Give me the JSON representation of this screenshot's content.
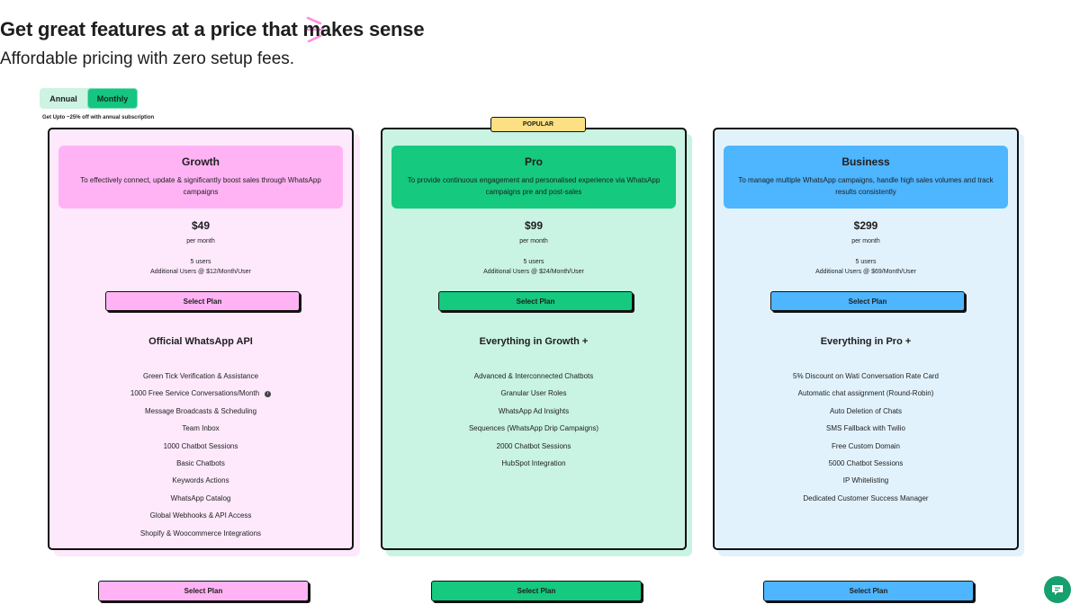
{
  "header": {
    "title": "Get great features at a price that makes sense",
    "subtitle": "Affordable pricing with zero setup fees."
  },
  "billing_toggle": {
    "options": [
      "Annual",
      "Monthly"
    ],
    "selected": "Monthly",
    "note": "Get Upto ~25% off with annual subscription"
  },
  "popular_badge": "POPULAR",
  "plans": [
    {
      "name": "Growth",
      "description": "To effectively connect, update & significantly boost sales through WhatsApp campaigns",
      "price": "$49",
      "period": "per month",
      "users": "5 users",
      "additional_users": "Additional Users @ $12/Month/User",
      "button_label": "Select Plan",
      "features_title": "Official WhatsApp API",
      "features": [
        "Green Tick Verification & Assistance",
        "1000 Free Service Conversations/Month",
        "Message Broadcasts & Scheduling",
        "Team Inbox",
        "1000 Chatbot Sessions",
        "Basic Chatbots",
        "Keywords Actions",
        "WhatsApp Catalog",
        "Global Webhooks & API Access",
        "Shopify & Woocommerce Integrations"
      ],
      "accent": "#ffb3f4",
      "background": "#fde8fc"
    },
    {
      "name": "Pro",
      "description": "To provide continuous engagement and personalised experience via WhatsApp campaigns pre and post-sales",
      "price": "$99",
      "period": "per month",
      "users": "5 users",
      "additional_users": "Additional Users @ $24/Month/User",
      "button_label": "Select Plan",
      "features_title": "Everything in Growth +",
      "features": [
        "Advanced & Interconnected Chatbots",
        "Granular User Roles",
        "WhatsApp Ad Insights",
        "Sequences (WhatsApp Drip Campaigns)",
        "2000 Chatbot Sessions",
        "HubSpot Integration"
      ],
      "accent": "#15c97f",
      "background": "#c9f3e3"
    },
    {
      "name": "Business",
      "description": "To manage multiple WhatsApp campaigns, handle high sales volumes and track results consistently",
      "price": "$299",
      "period": "per month",
      "users": "5 users",
      "additional_users": "Additional Users @ $69/Month/User",
      "button_label": "Select Plan",
      "features_title": "Everything in Pro +",
      "features": [
        "5% Discount on Wati Conversation Rate Card",
        "Automatic chat assignment (Round-Robin)",
        "Auto Deletion of Chats",
        "SMS Fallback with Twilio",
        "Free Custom Domain",
        "5000 Chatbot Sessions",
        "IP Whitelisting",
        "Dedicated Customer Success Manager"
      ],
      "accent": "#4eb5ff",
      "background": "#e2f2fd"
    }
  ],
  "bottom_buttons": [
    "Select Plan",
    "Select Plan",
    "Select Plan"
  ],
  "icons": {
    "sparkle": "sparkle-icon",
    "info": "info-icon",
    "chat": "chat-bubble-icon"
  },
  "colors": {
    "toggle_bg": "#cdf3e3",
    "toggle_active": "#15c581",
    "popular": "#fce083",
    "chat_fab": "#15a06e"
  }
}
